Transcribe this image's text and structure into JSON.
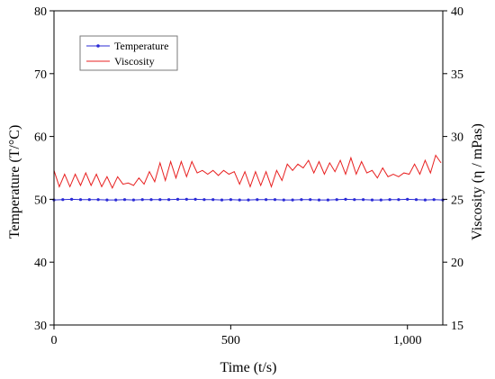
{
  "chart_data": {
    "type": "line",
    "xlabel": "Time (t/s)",
    "ylabel_left": "Temperature (T/°C)",
    "ylabel_right": "Viscosity (η / mPas)",
    "xlim": [
      0,
      1100
    ],
    "ylim_left": [
      30,
      80
    ],
    "ylim_right": [
      15,
      40
    ],
    "x_ticks": [
      0,
      500,
      1000
    ],
    "x_tick_labels": [
      "0",
      "500",
      "1,000"
    ],
    "y_left_ticks": [
      30,
      40,
      50,
      60,
      70,
      80
    ],
    "y_right_ticks": [
      15,
      20,
      25,
      30,
      35,
      40
    ],
    "grid": false,
    "legend_position": "top-left",
    "series": [
      {
        "name": "Temperature",
        "axis": "left",
        "color": "#2b2bd6",
        "marker": "dot",
        "x": [
          0,
          25,
          50,
          75,
          100,
          125,
          150,
          175,
          200,
          225,
          250,
          275,
          300,
          325,
          350,
          375,
          400,
          425,
          450,
          475,
          500,
          525,
          550,
          575,
          600,
          625,
          650,
          675,
          700,
          725,
          750,
          775,
          800,
          825,
          850,
          875,
          900,
          925,
          950,
          975,
          1000,
          1025,
          1050,
          1075,
          1100
        ],
        "values": [
          49.9,
          49.95,
          50.0,
          49.95,
          49.95,
          49.95,
          49.9,
          49.9,
          49.95,
          49.9,
          49.95,
          49.95,
          49.95,
          49.95,
          50.0,
          50.0,
          50.0,
          49.95,
          49.95,
          49.9,
          49.95,
          49.9,
          49.9,
          49.95,
          49.95,
          49.95,
          49.9,
          49.9,
          49.95,
          49.95,
          49.9,
          49.9,
          49.95,
          50.0,
          49.95,
          49.95,
          49.9,
          49.9,
          49.95,
          49.95,
          50.0,
          49.95,
          49.9,
          49.95,
          49.9
        ]
      },
      {
        "name": "Viscosity",
        "axis": "right",
        "color": "#e82020",
        "x": [
          0,
          15,
          30,
          45,
          60,
          75,
          90,
          105,
          120,
          135,
          150,
          165,
          180,
          195,
          210,
          225,
          240,
          255,
          270,
          285,
          300,
          315,
          330,
          345,
          360,
          375,
          390,
          405,
          420,
          435,
          450,
          465,
          480,
          495,
          510,
          525,
          540,
          555,
          570,
          585,
          600,
          615,
          630,
          645,
          660,
          675,
          690,
          705,
          720,
          735,
          750,
          765,
          780,
          795,
          810,
          825,
          840,
          855,
          870,
          885,
          900,
          915,
          930,
          945,
          960,
          975,
          990,
          1005,
          1020,
          1035,
          1050,
          1065,
          1080,
          1095
        ],
        "values": [
          27.3,
          26.0,
          27.0,
          26.0,
          27.0,
          26.1,
          27.1,
          26.1,
          27.0,
          26.0,
          26.8,
          25.9,
          26.8,
          26.2,
          26.3,
          26.1,
          26.7,
          26.2,
          27.2,
          26.4,
          27.9,
          26.5,
          28.0,
          26.7,
          28.0,
          26.8,
          28.0,
          27.1,
          27.3,
          27.0,
          27.3,
          26.9,
          27.3,
          27.0,
          27.2,
          26.2,
          27.2,
          26.0,
          27.2,
          26.1,
          27.2,
          26.0,
          27.3,
          26.5,
          27.8,
          27.3,
          27.8,
          27.5,
          28.1,
          27.1,
          28.0,
          27.0,
          27.9,
          27.2,
          28.1,
          27.0,
          28.3,
          27.0,
          28.0,
          27.1,
          27.3,
          26.7,
          27.5,
          26.8,
          27.0,
          26.8,
          27.1,
          27.0,
          27.8,
          27.0,
          28.1,
          27.1,
          28.5,
          27.9
        ]
      }
    ]
  }
}
